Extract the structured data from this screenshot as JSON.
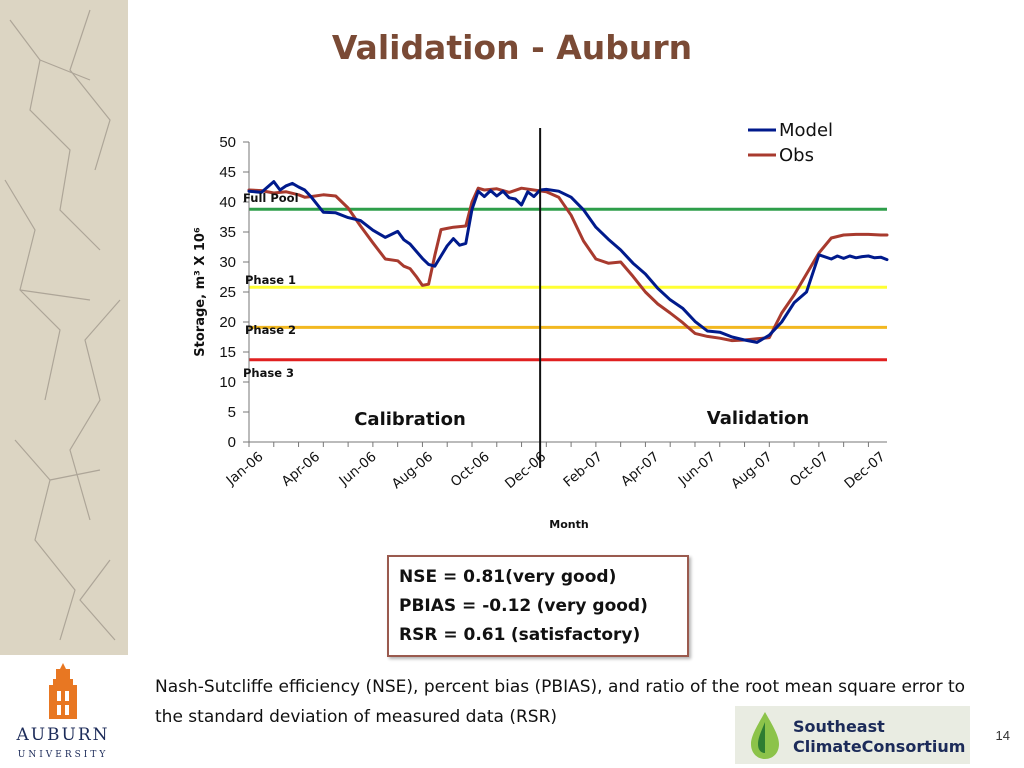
{
  "slide": {
    "title": "Validation - Auburn",
    "page_number": "14",
    "metrics": {
      "nse_label": "NSE = 0.81",
      "nse_rating": "(very good)",
      "pbias_label": "PBIAS = -0.12",
      "pbias_rating": "(very good)",
      "rsr_label": "RSR = 0.61",
      "rsr_rating": "(satisfactory)"
    },
    "caption": "Nash-Sutcliffe efficiency (NSE), percent bias (PBIAS), and ratio of the root mean square error to the standard deviation of measured data (RSR)",
    "logos": {
      "auburn_name": "AUBURN",
      "auburn_sub": "UNIVERSITY",
      "scc_line1": "Southeast",
      "scc_line2": "ClimateConsortium"
    }
  },
  "chart_data": {
    "type": "line",
    "xlabel": "Month",
    "ylabel": "Storage, m³ X 10⁶",
    "ylim": [
      0,
      50
    ],
    "yticks": [
      0,
      5,
      10,
      15,
      20,
      25,
      30,
      35,
      40,
      45,
      50
    ],
    "xtick_labels": [
      "Jan-06",
      "Apr-06",
      "Jun-06",
      "Aug-06",
      "Oct-06",
      "Dec-06",
      "Feb-07",
      "Apr-07",
      "Jun-07",
      "Aug-07",
      "Oct-07",
      "Dec-07"
    ],
    "n_periods": 104,
    "legend": "top-right",
    "series": [
      {
        "name": "Model",
        "color": "#001a8c",
        "x": [
          0,
          2,
          4,
          5,
          6,
          7,
          8,
          9,
          10,
          12,
          14,
          16,
          18,
          20,
          22,
          24,
          25,
          26,
          28,
          29,
          30,
          31,
          32,
          33,
          34,
          35,
          36,
          37,
          38,
          39,
          40,
          41,
          42,
          43,
          44,
          45,
          46,
          47,
          48,
          50,
          52,
          54,
          56,
          58,
          60,
          62,
          64,
          66,
          68,
          70,
          72,
          74,
          76,
          78,
          80,
          82,
          84,
          86,
          88,
          90,
          92,
          94,
          95,
          96,
          97,
          98,
          99,
          100,
          101,
          102,
          103
        ],
        "values": [
          41.8,
          41.6,
          43.4,
          42.0,
          42.7,
          43.1,
          42.5,
          42.0,
          40.9,
          38.3,
          38.2,
          37.4,
          36.9,
          35.3,
          34.1,
          35.1,
          33.7,
          33.0,
          30.6,
          29.6,
          29.3,
          31.0,
          32.7,
          33.9,
          32.8,
          33.1,
          38.8,
          41.8,
          40.9,
          41.9,
          41.0,
          41.8,
          40.7,
          40.5,
          39.5,
          41.7,
          40.9,
          42.0,
          42.1,
          41.8,
          40.8,
          38.7,
          35.8,
          33.8,
          32.0,
          29.8,
          28.0,
          25.6,
          23.7,
          22.3,
          20.1,
          18.5,
          18.3,
          17.5,
          17.0,
          16.6,
          17.8,
          20.0,
          23.2,
          25.0,
          31.2,
          30.5,
          31.0,
          30.6,
          31.0,
          30.7,
          30.9,
          31.0,
          30.7,
          30.8,
          30.4
        ],
        "y_note": "values read from gridlines"
      },
      {
        "name": "Obs",
        "color": "#a83a2e",
        "x": [
          0,
          2,
          4,
          6,
          8,
          9,
          10,
          12,
          14,
          16,
          18,
          20,
          22,
          24,
          25,
          26,
          27,
          28,
          29,
          30,
          31,
          32,
          33,
          34,
          35,
          36,
          37,
          38,
          40,
          42,
          44,
          46,
          48,
          50,
          52,
          54,
          56,
          58,
          60,
          62,
          64,
          66,
          68,
          70,
          72,
          74,
          76,
          78,
          80,
          82,
          84,
          86,
          88,
          90,
          92,
          94,
          96,
          98,
          100,
          102,
          103
        ],
        "values": [
          42.0,
          41.9,
          41.5,
          41.7,
          41.2,
          40.8,
          40.9,
          41.2,
          41.0,
          39.0,
          36.0,
          33.2,
          30.5,
          30.2,
          29.3,
          28.9,
          27.6,
          26.1,
          26.3,
          31.1,
          35.4,
          35.6,
          35.8,
          35.9,
          36.0,
          40.0,
          42.3,
          42.0,
          42.2,
          41.6,
          42.3,
          42.0,
          41.7,
          40.8,
          37.8,
          33.5,
          30.5,
          29.8,
          30.0,
          27.6,
          25.0,
          23.0,
          21.5,
          19.9,
          18.1,
          17.6,
          17.3,
          16.9,
          17.0,
          17.2,
          17.4,
          21.5,
          24.5,
          28.0,
          31.5,
          34.0,
          34.5,
          34.6,
          34.6,
          34.5,
          34.5
        ]
      }
    ],
    "reference_lines": [
      {
        "label": "Full Pool",
        "value": 38.8,
        "color": "#2e9e4a"
      },
      {
        "label": "Phase 1",
        "value": 25.8,
        "color": "#ffff33"
      },
      {
        "label": "Phase 2",
        "value": 19.1,
        "color": "#f2b820"
      },
      {
        "label": "Phase 3",
        "value": 13.7,
        "color": "#e02020"
      }
    ],
    "divider_at_period": 47,
    "region_labels": [
      "Calibration",
      "Validation"
    ]
  }
}
